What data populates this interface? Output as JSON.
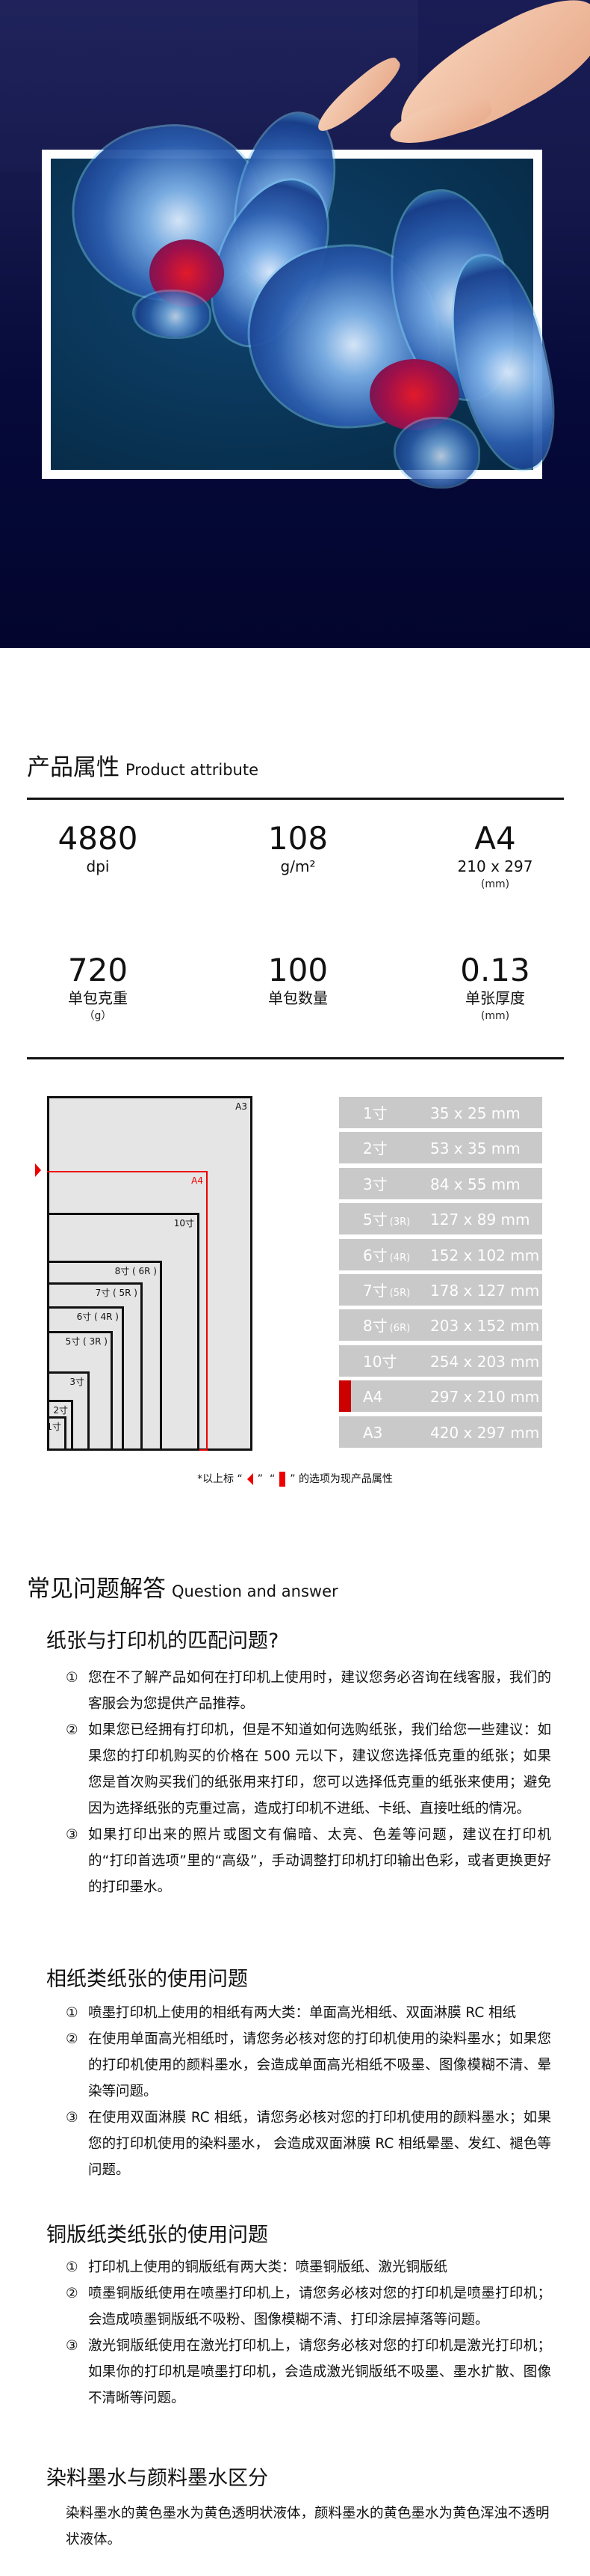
{
  "colors": {
    "hero_bg": "#03052e",
    "accent_red": "#cc0000",
    "table_gray": "#c9c9c9",
    "diagram_fill": "#e5e5e5"
  },
  "attributes": {
    "title": "产品属性",
    "title_en": "Product attribute",
    "items": [
      {
        "value": "4880",
        "unit": "dpi",
        "sub": ""
      },
      {
        "value": "108",
        "unit": "g/m²",
        "sub": ""
      },
      {
        "value": "A4",
        "unit": "210 x 297",
        "sub": "(mm)"
      },
      {
        "value": "720",
        "unit": "单包克重",
        "sub": "（g）"
      },
      {
        "value": "100",
        "unit": "单包数量",
        "sub": ""
      },
      {
        "value": "0.13",
        "unit": "单张厚度",
        "sub": "(mm)"
      }
    ]
  },
  "size_diagram": {
    "boxes": [
      {
        "label": "A3"
      },
      {
        "label": "A4",
        "selected": true
      },
      {
        "label": "10寸"
      },
      {
        "label": "8寸 ( 6R )"
      },
      {
        "label": "7寸 ( 5R )"
      },
      {
        "label": "6寸 ( 4R )"
      },
      {
        "label": "5寸 ( 3R )"
      },
      {
        "label": "3寸"
      },
      {
        "label": "2寸"
      },
      {
        "label": "1寸"
      }
    ],
    "table": [
      {
        "name": "1寸",
        "tag": "",
        "dim": "35 x 25 mm"
      },
      {
        "name": "2寸",
        "tag": "",
        "dim": "53 x 35 mm"
      },
      {
        "name": "3寸",
        "tag": "",
        "dim": "84 x 55 mm"
      },
      {
        "name": "5寸",
        "tag": "(3R)",
        "dim": "127 x 89 mm"
      },
      {
        "name": "6寸",
        "tag": "(4R)",
        "dim": "152 x 102 mm"
      },
      {
        "name": "7寸",
        "tag": "(5R)",
        "dim": "178 x 127 mm"
      },
      {
        "name": "8寸",
        "tag": "(6R)",
        "dim": "203 x 152 mm"
      },
      {
        "name": "10寸",
        "tag": "",
        "dim": "254 x 203 mm"
      },
      {
        "name": "A4",
        "tag": "",
        "dim": "297 x 210 mm",
        "selected": true
      },
      {
        "name": "A3",
        "tag": "",
        "dim": "420 x 297 mm"
      }
    ],
    "legend": {
      "prefix": "*以上标",
      "q_open": "“",
      "q_close": "”",
      "suffix": "的选项为现产品属性"
    }
  },
  "faq": {
    "title": "常见问题解答",
    "title_en": "Question and answer",
    "sections": [
      {
        "heading": "纸张与打印机的匹配问题?",
        "items": [
          {
            "n": "①",
            "text": "您在不了解产品如何在打印机上使用时，建议您务必咨询在线客服，我们的客服会为您提供产品推荐。"
          },
          {
            "n": "②",
            "text": "如果您已经拥有打印机，但是不知道如何选购纸张，我们给您一些建议：如果您的打印机购买的价格在 500 元以下，建议您选择低克重的纸张；如果您是首次购买我们的纸张用来打印，您可以选择低克重的纸张来使用；避免因为选择纸张的克重过高，造成打印机不进纸、卡纸、直接吐纸的情况。"
          },
          {
            "n": "③",
            "text": "如果打印出来的照片或图文有偏暗、太亮、色差等问题，建议在打印机的“打印首选项”里的“高级”，手动调整打印机打印输出色彩，或者更换更好的打印墨水。"
          }
        ]
      },
      {
        "heading": "相纸类纸张的使用问题",
        "items": [
          {
            "n": "①",
            "text": "喷墨打印机上使用的相纸有两大类：单面高光相纸、双面淋膜 RC 相纸"
          },
          {
            "n": "②",
            "text": "在使用单面高光相纸时，请您务必核对您的打印机使用的染料墨水；如果您的打印机使用的颜料墨水，会造成单面高光相纸不吸墨、图像模糊不清、晕染等问题。"
          },
          {
            "n": "③",
            "text": "在使用双面淋膜 RC 相纸，请您务必核对您的打印机使用的颜料墨水；如果您的打印机使用的染料墨水， 会造成双面淋膜 RC 相纸晕墨、发红、褪色等问题。"
          }
        ]
      },
      {
        "heading": "铜版纸类纸张的使用问题",
        "items": [
          {
            "n": "①",
            "text": "打印机上使用的铜版纸有两大类：喷墨铜版纸、激光铜版纸"
          },
          {
            "n": "②",
            "text": "喷墨铜版纸使用在喷墨打印机上，请您务必核对您的打印机是喷墨打印机；会造成喷墨铜版纸不吸粉、图像模糊不清、打印涂层掉落等问题。"
          },
          {
            "n": "③",
            "text": "激光铜版纸使用在激光打印机上，请您务必核对您的打印机是激光打印机；如果你的打印机是喷墨打印机，会造成激光铜版纸不吸墨、墨水扩散、图像不清晰等问题。"
          }
        ]
      },
      {
        "heading": "染料墨水与颜料墨水区分",
        "text": "染料墨水的黄色墨水为黄色透明状液体，颜料墨水的黄色墨水为黄色浑浊不透明状液体。"
      }
    ]
  }
}
